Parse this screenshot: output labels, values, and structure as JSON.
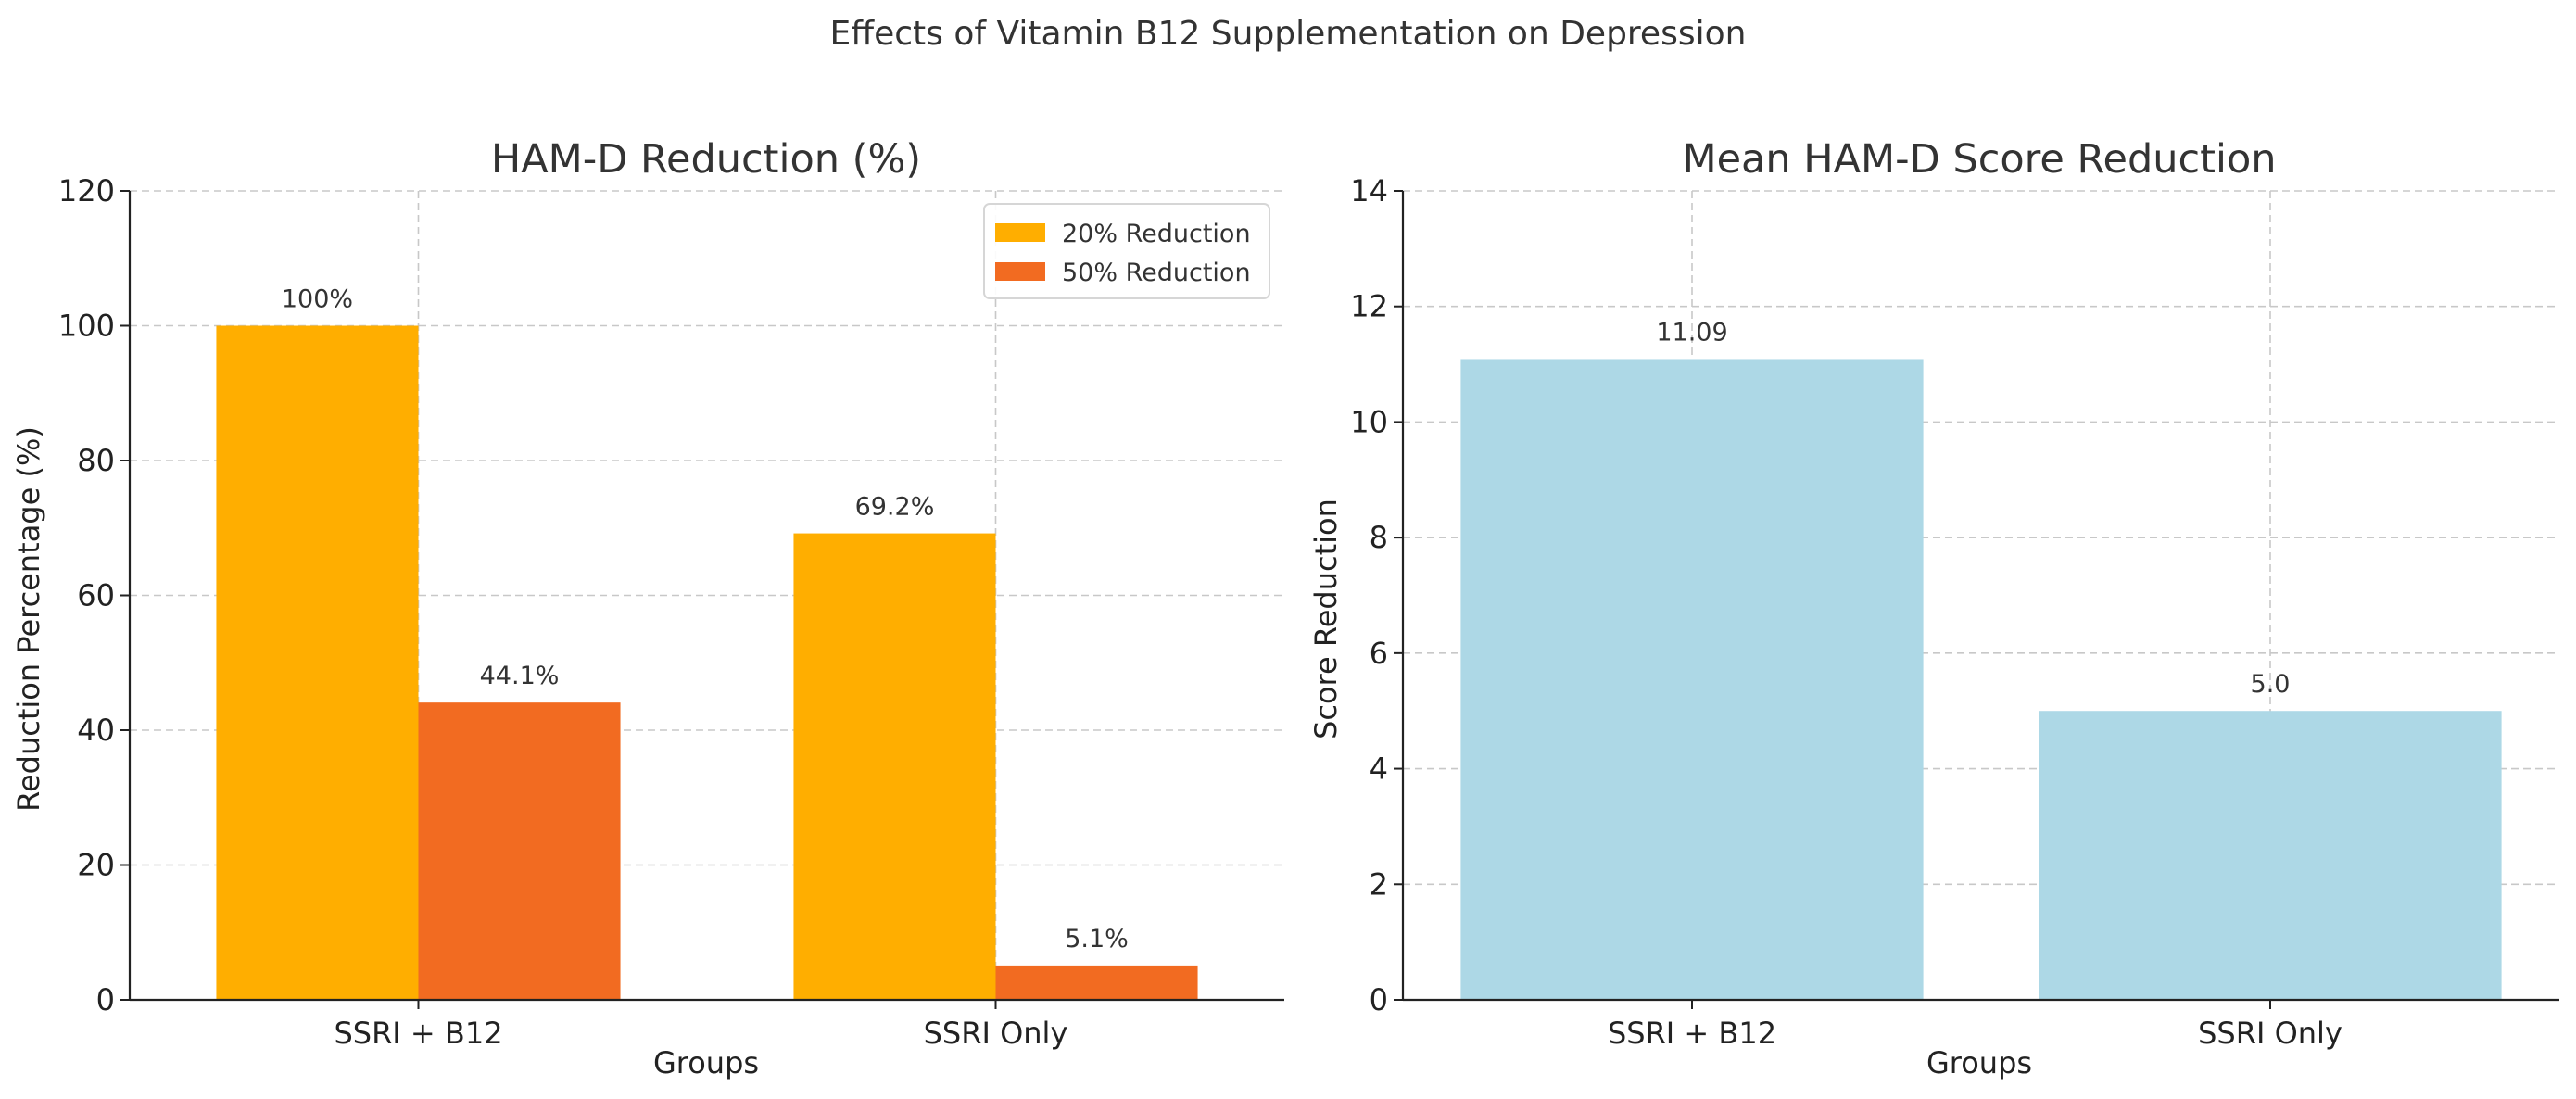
{
  "figure": {
    "title": "Effects of Vitamin B12 Supplementation on Depression"
  },
  "chart_data": [
    {
      "type": "bar",
      "title": "HAM-D Reduction (%)",
      "xlabel": "Groups",
      "ylabel": "Reduction Percentage (%)",
      "categories": [
        "SSRI + B12",
        "SSRI Only"
      ],
      "ylim": [
        0,
        120
      ],
      "yticks": [
        0,
        20,
        40,
        60,
        80,
        100,
        120
      ],
      "ytick_labels": [
        "0",
        "20",
        "40",
        "60",
        "80",
        "100",
        "120"
      ],
      "grid": true,
      "legend": {
        "position": "top-right"
      },
      "series": [
        {
          "name": "20% Reduction",
          "color": "#FFAE00",
          "values": [
            100,
            69.2
          ],
          "labels": [
            "100%",
            "69.2%"
          ]
        },
        {
          "name": "50% Reduction",
          "color": "#F26B21",
          "values": [
            44.1,
            5.1
          ],
          "labels": [
            "44.1%",
            "5.1%"
          ]
        }
      ]
    },
    {
      "type": "bar",
      "title": "Mean HAM-D Score Reduction",
      "xlabel": "Groups",
      "ylabel": "Score Reduction",
      "categories": [
        "SSRI + B12",
        "SSRI Only"
      ],
      "ylim": [
        0,
        14
      ],
      "yticks": [
        0,
        2,
        4,
        6,
        8,
        10,
        12,
        14
      ],
      "ytick_labels": [
        "0",
        "2",
        "4",
        "6",
        "8",
        "10",
        "12",
        "14"
      ],
      "grid": true,
      "series": [
        {
          "name": "Mean Score Reduction",
          "color": "#ADD8E6",
          "values": [
            11.09,
            5.0
          ],
          "labels": [
            "11.09",
            "5.0"
          ]
        }
      ]
    }
  ]
}
